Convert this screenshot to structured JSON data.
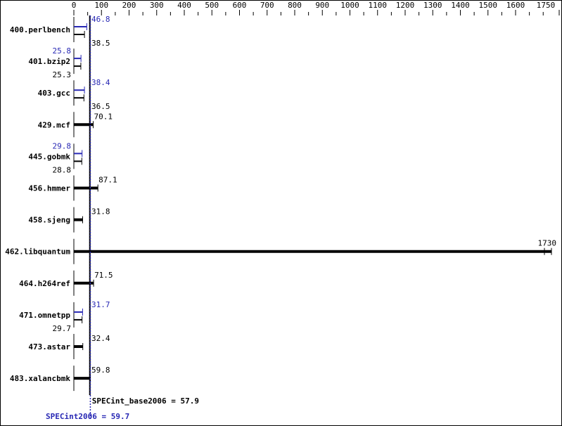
{
  "chart_data": {
    "type": "bar",
    "orientation": "horizontal",
    "title": "",
    "xlabel": "",
    "ylabel": "",
    "xlim": [
      0,
      1750
    ],
    "x_ticks": [
      0,
      100,
      200,
      300,
      400,
      500,
      600,
      700,
      800,
      900,
      1000,
      1100,
      1200,
      1300,
      1400,
      1500,
      1600,
      1750
    ],
    "grid": false,
    "colors": {
      "base": "#000000",
      "peak": "#2828b4"
    },
    "categories": [
      "400.perlbench",
      "401.bzip2",
      "403.gcc",
      "429.mcf",
      "445.gobmk",
      "456.hmmer",
      "458.sjeng",
      "462.libquantum",
      "464.h264ref",
      "471.omnetpp",
      "473.astar",
      "483.xalancbmk"
    ],
    "series": [
      {
        "key": "base",
        "values": [
          38.5,
          25.3,
          36.5,
          70.1,
          28.8,
          87.1,
          31.8,
          1730,
          71.5,
          29.7,
          32.4,
          59.8
        ]
      },
      {
        "key": "peak",
        "values": [
          46.8,
          25.8,
          38.4,
          null,
          29.8,
          null,
          null,
          null,
          null,
          31.7,
          null,
          null
        ]
      }
    ],
    "reference_lines": [
      {
        "key": "base",
        "value": 57.9,
        "label": "SPECint_base2006 = 57.9"
      },
      {
        "key": "peak",
        "value": 59.7,
        "label": "SPECint2006 = 59.7"
      }
    ]
  }
}
